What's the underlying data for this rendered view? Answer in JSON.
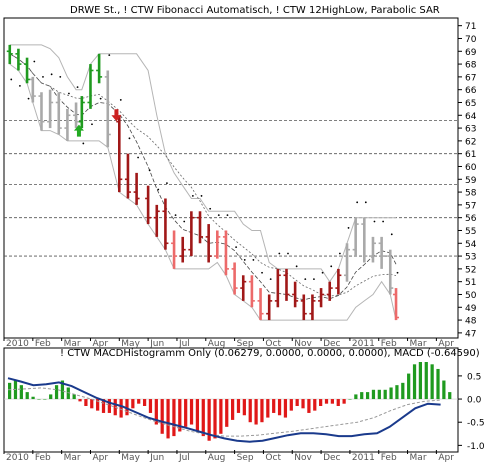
{
  "chart_data": [
    {
      "type": "bar",
      "subtype": "ohlc-price-chart",
      "title": "DRWE St., ! CTW Fibonacci Automatisch, ! CTW 12HighLow, Parabolic SAR",
      "y_ticks": [
        "71",
        "70",
        "69",
        "68",
        "67",
        "66",
        "65",
        "64",
        "63",
        "62",
        "61",
        "60",
        "59",
        "58",
        "57",
        "56",
        "55",
        "54",
        "53",
        "52",
        "51",
        "50",
        "49",
        "48",
        "47"
      ],
      "ylim": [
        46.6,
        71.6
      ],
      "x_months": [
        "2010",
        "Feb",
        "Mar",
        "Apr",
        "May",
        "Jun",
        "Jul",
        "Aug",
        "Sep",
        "Oct",
        "Nov",
        "Dec",
        "2011",
        "Feb",
        "Mar",
        "Apr"
      ],
      "fibonacci_levels": [
        63.6,
        61.0,
        58.6,
        56.0,
        53.0
      ],
      "grid": false,
      "series": [
        {
          "name": "",
          "candles": [
            {
              "t": 0.2,
              "o": 69.0,
              "h": 69.5,
              "l": 68.0,
              "c": 68.8,
              "color": "green"
            },
            {
              "t": 0.5,
              "o": 68.8,
              "h": 69.2,
              "l": 67.5,
              "c": 68.0,
              "color": "green"
            },
            {
              "t": 0.8,
              "o": 68.0,
              "h": 68.5,
              "l": 66.5,
              "c": 66.8,
              "color": "green"
            },
            {
              "t": 1.0,
              "o": 66.8,
              "h": 67.0,
              "l": 65.0,
              "c": 65.5,
              "color": "gray"
            },
            {
              "t": 1.3,
              "o": 65.5,
              "h": 65.8,
              "l": 62.8,
              "c": 63.5,
              "color": "gray"
            },
            {
              "t": 1.6,
              "o": 63.5,
              "h": 66.0,
              "l": 63.0,
              "c": 65.0,
              "color": "gray"
            },
            {
              "t": 1.9,
              "o": 65.0,
              "h": 65.8,
              "l": 62.5,
              "c": 63.0,
              "color": "gray"
            },
            {
              "t": 2.2,
              "o": 63.0,
              "h": 64.5,
              "l": 62.0,
              "c": 64.0,
              "color": "gray"
            },
            {
              "t": 2.5,
              "o": 64.0,
              "h": 65.0,
              "l": 63.0,
              "c": 63.5,
              "color": "gray"
            },
            {
              "t": 2.7,
              "o": 63.5,
              "h": 65.5,
              "l": 63.0,
              "c": 65.0,
              "color": "green"
            },
            {
              "t": 3.0,
              "o": 65.0,
              "h": 68.0,
              "l": 64.5,
              "c": 67.5,
              "color": "green"
            },
            {
              "t": 3.3,
              "o": 67.5,
              "h": 68.8,
              "l": 66.5,
              "c": 67.0,
              "color": "green"
            },
            {
              "t": 3.6,
              "o": 67.0,
              "h": 67.5,
              "l": 61.5,
              "c": 62.5,
              "color": "gray"
            },
            {
              "t": 4.0,
              "o": 63.5,
              "h": 64.0,
              "l": 58.0,
              "c": 59.0,
              "color": "darkred"
            },
            {
              "t": 4.3,
              "o": 59.0,
              "h": 61.0,
              "l": 57.5,
              "c": 58.0,
              "color": "darkred"
            },
            {
              "t": 4.6,
              "o": 58.0,
              "h": 59.5,
              "l": 57.0,
              "c": 57.5,
              "color": "darkred"
            },
            {
              "t": 5.0,
              "o": 57.5,
              "h": 58.5,
              "l": 55.5,
              "c": 56.0,
              "color": "darkred"
            },
            {
              "t": 5.3,
              "o": 56.0,
              "h": 57.0,
              "l": 54.5,
              "c": 56.5,
              "color": "darkred"
            },
            {
              "t": 5.6,
              "o": 56.5,
              "h": 57.5,
              "l": 53.5,
              "c": 54.0,
              "color": "darkred"
            },
            {
              "t": 5.9,
              "o": 54.0,
              "h": 55.0,
              "l": 52.0,
              "c": 53.0,
              "color": "lightred"
            },
            {
              "t": 6.2,
              "o": 53.0,
              "h": 54.5,
              "l": 52.5,
              "c": 53.5,
              "color": "darkred"
            },
            {
              "t": 6.5,
              "o": 53.5,
              "h": 56.5,
              "l": 53.0,
              "c": 56.0,
              "color": "darkred"
            },
            {
              "t": 6.8,
              "o": 56.0,
              "h": 56.5,
              "l": 54.0,
              "c": 54.5,
              "color": "darkred"
            },
            {
              "t": 7.1,
              "o": 54.5,
              "h": 55.5,
              "l": 52.5,
              "c": 53.0,
              "color": "darkred"
            },
            {
              "t": 7.4,
              "o": 53.0,
              "h": 55.0,
              "l": 52.8,
              "c": 54.5,
              "color": "lightred"
            },
            {
              "t": 7.7,
              "o": 54.5,
              "h": 55.0,
              "l": 51.5,
              "c": 52.0,
              "color": "lightred"
            },
            {
              "t": 8.0,
              "o": 52.0,
              "h": 52.5,
              "l": 50.0,
              "c": 50.5,
              "color": "lightred"
            },
            {
              "t": 8.3,
              "o": 50.5,
              "h": 51.5,
              "l": 49.5,
              "c": 51.0,
              "color": "darkred"
            },
            {
              "t": 8.6,
              "o": 51.0,
              "h": 51.5,
              "l": 49.0,
              "c": 49.5,
              "color": "lightred"
            },
            {
              "t": 8.9,
              "o": 49.5,
              "h": 50.5,
              "l": 48.0,
              "c": 48.5,
              "color": "lightred"
            },
            {
              "t": 9.2,
              "o": 48.5,
              "h": 50.0,
              "l": 48.0,
              "c": 49.5,
              "color": "darkred"
            },
            {
              "t": 9.5,
              "o": 49.5,
              "h": 52.0,
              "l": 49.0,
              "c": 51.5,
              "color": "darkred"
            },
            {
              "t": 9.8,
              "o": 51.5,
              "h": 52.0,
              "l": 49.5,
              "c": 50.0,
              "color": "darkred"
            },
            {
              "t": 10.1,
              "o": 50.0,
              "h": 51.0,
              "l": 49.0,
              "c": 49.5,
              "color": "darkred"
            },
            {
              "t": 10.4,
              "o": 49.5,
              "h": 50.0,
              "l": 48.0,
              "c": 48.5,
              "color": "darkred"
            },
            {
              "t": 10.7,
              "o": 48.5,
              "h": 50.0,
              "l": 48.0,
              "c": 49.5,
              "color": "darkred"
            },
            {
              "t": 11.0,
              "o": 49.5,
              "h": 50.5,
              "l": 49.0,
              "c": 50.0,
              "color": "darkred"
            },
            {
              "t": 11.3,
              "o": 50.0,
              "h": 51.0,
              "l": 49.5,
              "c": 50.5,
              "color": "darkred"
            },
            {
              "t": 11.6,
              "o": 50.5,
              "h": 52.0,
              "l": 50.0,
              "c": 51.5,
              "color": "darkred"
            },
            {
              "t": 11.9,
              "o": 51.5,
              "h": 54.0,
              "l": 51.0,
              "c": 53.5,
              "color": "gray"
            },
            {
              "t": 12.2,
              "o": 53.5,
              "h": 56.0,
              "l": 53.0,
              "c": 55.5,
              "color": "gray"
            },
            {
              "t": 12.5,
              "o": 55.5,
              "h": 56.0,
              "l": 52.5,
              "c": 53.0,
              "color": "gray"
            },
            {
              "t": 12.8,
              "o": 53.0,
              "h": 54.5,
              "l": 52.5,
              "c": 54.0,
              "color": "gray"
            },
            {
              "t": 13.1,
              "o": 54.0,
              "h": 54.5,
              "l": 52.0,
              "c": 53.0,
              "color": "gray"
            },
            {
              "t": 13.4,
              "o": 53.0,
              "h": 53.5,
              "l": 50.0,
              "c": 50.5,
              "color": "gray"
            },
            {
              "t": 13.6,
              "o": 50.0,
              "h": 50.5,
              "l": 48.0,
              "c": 48.2,
              "color": "lightred"
            }
          ]
        }
      ],
      "annotations": [
        {
          "type": "arrow-up",
          "t": 2.6,
          "value": 62.8,
          "color": "#22aa22"
        },
        {
          "type": "arrow-down",
          "t": 3.9,
          "value": 64.0,
          "color": "#cc2222"
        }
      ]
    },
    {
      "type": "bar",
      "subtype": "macd-histogram",
      "title": "! CTW MACDHistogramm Only (0.06279, 0.0000, 0.0000, 0.0000), MACD (-0.64590)",
      "y_ticks": [
        "0.5",
        "0.0",
        "-0.5",
        "-1.0"
      ],
      "ylim": [
        -1.1,
        0.8
      ],
      "histogram": [
        0.35,
        0.42,
        0.3,
        0.15,
        0.05,
        0.0,
        0.0,
        0.1,
        0.3,
        0.4,
        0.25,
        0.1,
        -0.05,
        -0.15,
        -0.2,
        -0.25,
        -0.3,
        -0.3,
        -0.35,
        -0.4,
        -0.35,
        -0.2,
        -0.1,
        -0.15,
        -0.3,
        -0.55,
        -0.75,
        -0.85,
        -0.8,
        -0.7,
        -0.6,
        -0.55,
        -0.7,
        -0.8,
        -0.9,
        -0.85,
        -0.75,
        -0.6,
        -0.45,
        -0.3,
        -0.35,
        -0.5,
        -0.55,
        -0.5,
        -0.4,
        -0.3,
        -0.35,
        -0.4,
        -0.25,
        -0.15,
        -0.2,
        -0.3,
        -0.25,
        -0.15,
        -0.1,
        -0.1,
        -0.15,
        -0.1,
        0.0,
        0.1,
        0.15,
        0.15,
        0.2,
        0.2,
        0.2,
        0.25,
        0.3,
        0.35,
        0.55,
        0.75,
        0.8,
        0.8,
        0.75,
        0.65,
        0.4,
        0.15
      ],
      "macd_line": [
        0.45,
        0.38,
        0.3,
        0.32,
        0.36,
        0.28,
        0.15,
        0.02,
        -0.08,
        -0.16,
        -0.28,
        -0.4,
        -0.48,
        -0.55,
        -0.62,
        -0.7,
        -0.78,
        -0.85,
        -0.9,
        -0.92,
        -0.9,
        -0.84,
        -0.78,
        -0.74,
        -0.74,
        -0.76,
        -0.8,
        -0.8,
        -0.76,
        -0.74,
        -0.6,
        -0.4,
        -0.2,
        -0.1,
        -0.12
      ],
      "signal_line": [
        0.2,
        0.22,
        0.24,
        0.2,
        0.1,
        0.0,
        -0.12,
        -0.25,
        -0.38,
        -0.5,
        -0.6,
        -0.7,
        -0.76,
        -0.8,
        -0.8,
        -0.78,
        -0.74,
        -0.7,
        -0.65,
        -0.6,
        -0.55,
        -0.5,
        -0.4,
        -0.25,
        -0.12,
        -0.05,
        -0.02
      ],
      "grid": false
    }
  ]
}
